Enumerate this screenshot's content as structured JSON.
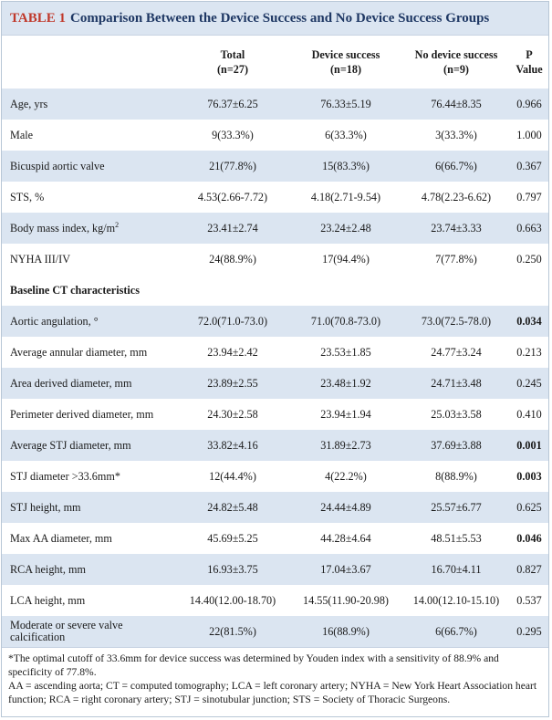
{
  "title": {
    "label": "TABLE 1",
    "text": "Comparison Between the Device Success and No Device Success Groups"
  },
  "header": {
    "col_total": "Total",
    "col_total_n": "(n=27)",
    "col_success": "Device success",
    "col_success_n": "(n=18)",
    "col_nosuccess": "No device success",
    "col_nosuccess_n": "(n=9)",
    "col_p": "P",
    "col_p2": "Value"
  },
  "rows": [
    {
      "label": "Age, yrs",
      "total": "76.37±6.25",
      "success": "76.33±5.19",
      "nosuccess": "76.44±8.35",
      "p": "0.966",
      "bold": false
    },
    {
      "label": "Male",
      "total": "9(33.3%)",
      "success": "6(33.3%)",
      "nosuccess": "3(33.3%)",
      "p": "1.000",
      "bold": false
    },
    {
      "label": "Bicuspid aortic valve",
      "total": "21(77.8%)",
      "success": "15(83.3%)",
      "nosuccess": "6(66.7%)",
      "p": "0.367",
      "bold": false
    },
    {
      "label": "STS, %",
      "total": "4.53(2.66-7.72)",
      "success": "4.18(2.71-9.54)",
      "nosuccess": "4.78(2.23-6.62)",
      "p": "0.797",
      "bold": false
    },
    {
      "label": "Body mass index, kg/m",
      "label_sup": "2",
      "total": "23.41±2.74",
      "success": "23.24±2.48",
      "nosuccess": "23.74±3.33",
      "p": "0.663",
      "bold": false
    },
    {
      "label": "NYHA III/IV",
      "total": "24(88.9%)",
      "success": "17(94.4%)",
      "nosuccess": "7(77.8%)",
      "p": "0.250",
      "bold": false
    }
  ],
  "section_label": "Baseline CT characteristics",
  "ct_rows": [
    {
      "label": "Aortic angulation, °",
      "total": "72.0(71.0-73.0)",
      "success": "71.0(70.8-73.0)",
      "nosuccess": "73.0(72.5-78.0)",
      "p": "0.034",
      "bold": true
    },
    {
      "label": "Average annular diameter, mm",
      "total": "23.94±2.42",
      "success": "23.53±1.85",
      "nosuccess": "24.77±3.24",
      "p": "0.213",
      "bold": false
    },
    {
      "label": "Area derived diameter, mm",
      "total": "23.89±2.55",
      "success": "23.48±1.92",
      "nosuccess": "24.71±3.48",
      "p": "0.245",
      "bold": false
    },
    {
      "label": "Perimeter derived diameter, mm",
      "total": "24.30±2.58",
      "success": "23.94±1.94",
      "nosuccess": "25.03±3.58",
      "p": "0.410",
      "bold": false
    },
    {
      "label": "Average STJ diameter, mm",
      "total": "33.82±4.16",
      "success": "31.89±2.73",
      "nosuccess": "37.69±3.88",
      "p": "0.001",
      "bold": true
    },
    {
      "label": "STJ diameter >33.6mm*",
      "total": "12(44.4%)",
      "success": "4(22.2%)",
      "nosuccess": "8(88.9%)",
      "p": "0.003",
      "bold": true
    },
    {
      "label": "STJ height, mm",
      "total": "24.82±5.48",
      "success": "24.44±4.89",
      "nosuccess": "25.57±6.77",
      "p": "0.625",
      "bold": false
    },
    {
      "label": "Max AA diameter, mm",
      "total": "45.69±5.25",
      "success": "44.28±4.64",
      "nosuccess": "48.51±5.53",
      "p": "0.046",
      "bold": true
    },
    {
      "label": "RCA height, mm",
      "total": "16.93±3.75",
      "success": "17.04±3.67",
      "nosuccess": "16.70±4.11",
      "p": "0.827",
      "bold": false
    },
    {
      "label": "LCA height, mm",
      "total": "14.40(12.00-18.70)",
      "success": "14.55(11.90-20.98)",
      "nosuccess": "14.00(12.10-15.10)",
      "p": "0.537",
      "bold": false
    },
    {
      "label": "Moderate or severe valve calcification",
      "total": "22(81.5%)",
      "success": "16(88.9%)",
      "nosuccess": "6(66.7%)",
      "p": "0.295",
      "bold": false
    }
  ],
  "footnotes": {
    "note1": "*The optimal cutoff of 33.6mm for device success was determined by Youden index with a sensitivity of 88.9% and specificity of 77.8%.",
    "note2": "AA = ascending aorta; CT = computed tomography; LCA = left coronary artery; NYHA = New York Heart Association heart function; RCA = right coronary artery; STJ = sinotubular junction; STS = Society of Thoracic Surgeons."
  }
}
